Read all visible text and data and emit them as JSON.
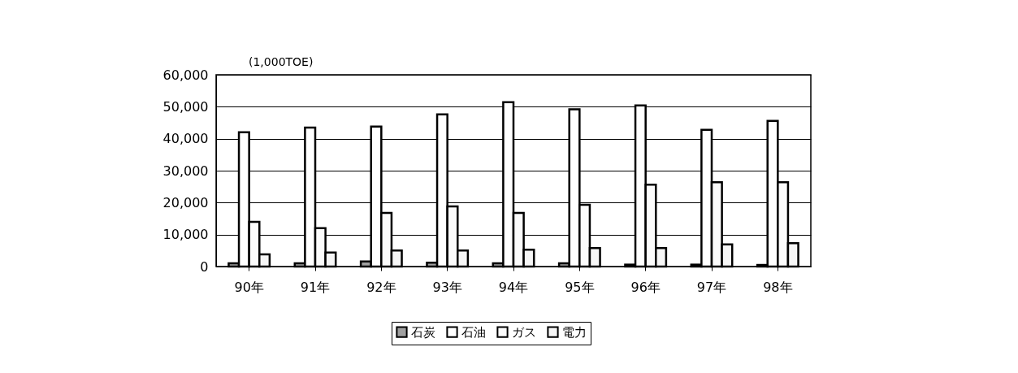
{
  "chart_data": {
    "type": "bar",
    "categories": [
      "90年",
      "91年",
      "92年",
      "93年",
      "94年",
      "95年",
      "96年",
      "97年",
      "98年"
    ],
    "series": [
      {
        "name": "石炭",
        "color": "#a0a0a0",
        "values": [
          1000,
          1000,
          1600,
          1200,
          1000,
          1000,
          600,
          600,
          500
        ]
      },
      {
        "name": "石油",
        "color": "#ffffff",
        "values": [
          42000,
          43500,
          43800,
          47600,
          51400,
          49200,
          50400,
          42800,
          45600
        ]
      },
      {
        "name": "ガス",
        "color": "#fbfbfb",
        "values": [
          14000,
          12000,
          16800,
          18800,
          16800,
          19300,
          25600,
          26400,
          26400
        ]
      },
      {
        "name": "電力",
        "color": "#f6f6f6",
        "values": [
          3800,
          4400,
          5000,
          5000,
          5300,
          5800,
          5800,
          6900,
          7300
        ]
      }
    ],
    "ylim": [
      0,
      60000
    ],
    "yticks": [
      0,
      {
        "value": 10000,
        "label": "10,000"
      },
      {
        "value": 20000,
        "label": "20,000"
      },
      {
        "value": 30000,
        "label": "30,000"
      },
      {
        "value": 40000,
        "label": "40,000"
      },
      {
        "value": 50000,
        "label": "50,000"
      },
      {
        "value": 60000,
        "label": "60,000"
      }
    ],
    "grid": "y",
    "legend": "bottom",
    "annotations": [
      "(1,000TOE)"
    ]
  }
}
